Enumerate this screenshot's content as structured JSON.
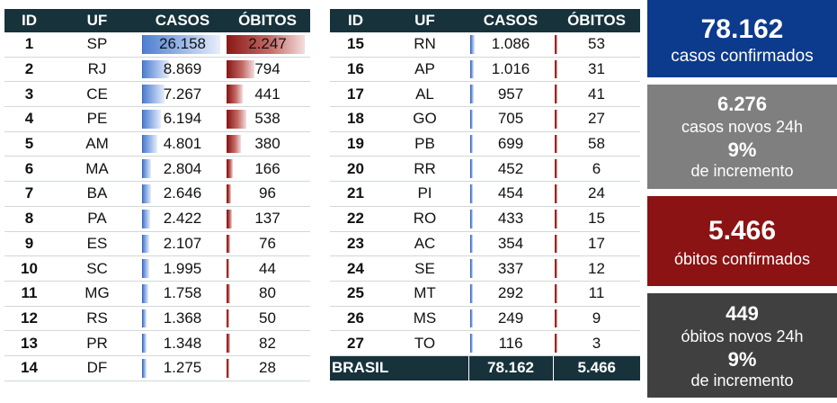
{
  "table1": {
    "headers": [
      "ID",
      "UF",
      "CASOS",
      "ÓBITOS"
    ],
    "rows": [
      {
        "id": "1",
        "uf": "SP",
        "casos": "26.158",
        "obitos": "2.247",
        "casos_n": 26158,
        "obitos_n": 2247
      },
      {
        "id": "2",
        "uf": "RJ",
        "casos": "8.869",
        "obitos": "794",
        "casos_n": 8869,
        "obitos_n": 794
      },
      {
        "id": "3",
        "uf": "CE",
        "casos": "7.267",
        "obitos": "441",
        "casos_n": 7267,
        "obitos_n": 441
      },
      {
        "id": "4",
        "uf": "PE",
        "casos": "6.194",
        "obitos": "538",
        "casos_n": 6194,
        "obitos_n": 538
      },
      {
        "id": "5",
        "uf": "AM",
        "casos": "4.801",
        "obitos": "380",
        "casos_n": 4801,
        "obitos_n": 380
      },
      {
        "id": "6",
        "uf": "MA",
        "casos": "2.804",
        "obitos": "166",
        "casos_n": 2804,
        "obitos_n": 166
      },
      {
        "id": "7",
        "uf": "BA",
        "casos": "2.646",
        "obitos": "96",
        "casos_n": 2646,
        "obitos_n": 96
      },
      {
        "id": "8",
        "uf": "PA",
        "casos": "2.422",
        "obitos": "137",
        "casos_n": 2422,
        "obitos_n": 137
      },
      {
        "id": "9",
        "uf": "ES",
        "casos": "2.107",
        "obitos": "76",
        "casos_n": 2107,
        "obitos_n": 76
      },
      {
        "id": "10",
        "uf": "SC",
        "casos": "1.995",
        "obitos": "44",
        "casos_n": 1995,
        "obitos_n": 44
      },
      {
        "id": "11",
        "uf": "MG",
        "casos": "1.758",
        "obitos": "80",
        "casos_n": 1758,
        "obitos_n": 80
      },
      {
        "id": "12",
        "uf": "RS",
        "casos": "1.368",
        "obitos": "50",
        "casos_n": 1368,
        "obitos_n": 50
      },
      {
        "id": "13",
        "uf": "PR",
        "casos": "1.348",
        "obitos": "82",
        "casos_n": 1348,
        "obitos_n": 82
      },
      {
        "id": "14",
        "uf": "DF",
        "casos": "1.275",
        "obitos": "28",
        "casos_n": 1275,
        "obitos_n": 28
      }
    ]
  },
  "table2": {
    "headers": [
      "ID",
      "UF",
      "CASOS",
      "ÓBITOS"
    ],
    "rows": [
      {
        "id": "15",
        "uf": "RN",
        "casos": "1.086",
        "obitos": "53",
        "casos_n": 1086,
        "obitos_n": 53
      },
      {
        "id": "16",
        "uf": "AP",
        "casos": "1.016",
        "obitos": "31",
        "casos_n": 1016,
        "obitos_n": 31
      },
      {
        "id": "17",
        "uf": "AL",
        "casos": "957",
        "obitos": "41",
        "casos_n": 957,
        "obitos_n": 41
      },
      {
        "id": "18",
        "uf": "GO",
        "casos": "705",
        "obitos": "27",
        "casos_n": 705,
        "obitos_n": 27
      },
      {
        "id": "19",
        "uf": "PB",
        "casos": "699",
        "obitos": "58",
        "casos_n": 699,
        "obitos_n": 58
      },
      {
        "id": "20",
        "uf": "RR",
        "casos": "452",
        "obitos": "6",
        "casos_n": 452,
        "obitos_n": 6
      },
      {
        "id": "21",
        "uf": "PI",
        "casos": "454",
        "obitos": "24",
        "casos_n": 454,
        "obitos_n": 24
      },
      {
        "id": "22",
        "uf": "RO",
        "casos": "433",
        "obitos": "15",
        "casos_n": 433,
        "obitos_n": 15
      },
      {
        "id": "23",
        "uf": "AC",
        "casos": "354",
        "obitos": "17",
        "casos_n": 354,
        "obitos_n": 17
      },
      {
        "id": "24",
        "uf": "SE",
        "casos": "337",
        "obitos": "12",
        "casos_n": 337,
        "obitos_n": 12
      },
      {
        "id": "25",
        "uf": "MT",
        "casos": "292",
        "obitos": "11",
        "casos_n": 292,
        "obitos_n": 11
      },
      {
        "id": "26",
        "uf": "MS",
        "casos": "249",
        "obitos": "9",
        "casos_n": 249,
        "obitos_n": 9
      },
      {
        "id": "27",
        "uf": "TO",
        "casos": "116",
        "obitos": "3",
        "casos_n": 116,
        "obitos_n": 3
      }
    ],
    "total": {
      "label": "BRASIL",
      "casos": "78.162",
      "obitos": "5.466"
    }
  },
  "summary": {
    "confirmed": {
      "value": "78.162",
      "label": "casos confirmados"
    },
    "new_cases": {
      "value": "6.276",
      "label": "casos novos 24h",
      "pct": "9%",
      "pct_label": "de incremento"
    },
    "deaths": {
      "value": "5.466",
      "label": "óbitos confirmados"
    },
    "new_deaths": {
      "value": "449",
      "label": "óbitos novos 24h",
      "pct": "9%",
      "pct_label": "de incremento"
    }
  },
  "colors": {
    "header": "#17323b",
    "casos_bar": "#4f7fd0",
    "obitos_bar": "#8b1a17",
    "box_confirmed": "#0c3a8c",
    "box_new": "#7f7f7f",
    "box_deaths": "#8b1313",
    "box_new_deaths": "#404040"
  }
}
